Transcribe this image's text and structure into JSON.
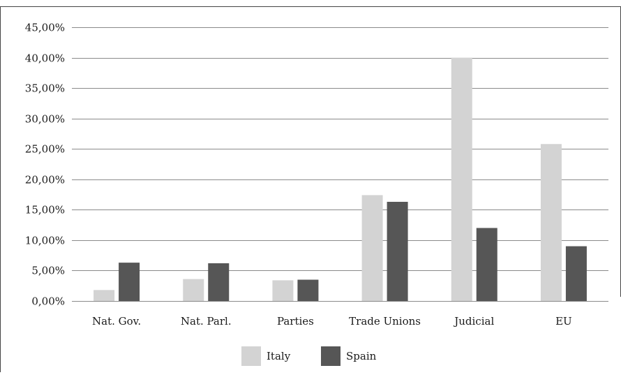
{
  "chart_data": {
    "type": "bar",
    "title": "",
    "xlabel": "",
    "ylabel": "",
    "categories": [
      "Nat. Gov.",
      "Nat. Parl.",
      "Parties",
      "Trade Unions",
      "Judicial",
      "EU"
    ],
    "series": [
      {
        "name": "Italy",
        "color": "#d3d3d3",
        "values": [
          1.8,
          3.6,
          3.4,
          17.4,
          40.0,
          25.8
        ]
      },
      {
        "name": "Spain",
        "color": "#565656",
        "values": [
          6.3,
          6.2,
          3.5,
          16.3,
          12.0,
          9.0
        ]
      }
    ],
    "ylim": [
      0,
      45
    ],
    "yticks": [
      0,
      5,
      10,
      15,
      20,
      25,
      30,
      35,
      40,
      45
    ],
    "ytick_labels": [
      "0,00%",
      "5,00%",
      "10,00%",
      "15,00%",
      "20,00%",
      "25,00%",
      "30,00%",
      "35,00%",
      "40,00%",
      "45,00%"
    ],
    "grid": true,
    "legend_position": "bottom"
  }
}
